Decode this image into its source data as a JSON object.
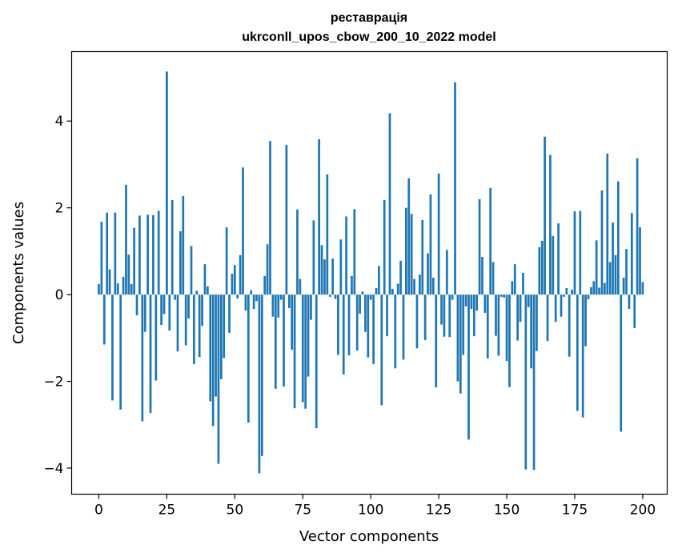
{
  "chart_data": {
    "type": "bar",
    "title": "реставрація",
    "subtitle": "ukrconll_upos_cbow_200_10_2022 model",
    "xlabel": "Vector components",
    "ylabel": "Components values",
    "xlim": [
      -10,
      209
    ],
    "ylim": [
      -4.6,
      5.6
    ],
    "xticks": [
      0,
      25,
      50,
      75,
      100,
      125,
      150,
      175,
      200
    ],
    "yticks": [
      -4,
      -2,
      0,
      2,
      4
    ],
    "ytick_labels": [
      "−4",
      "−2",
      "0",
      "2",
      "4"
    ],
    "bar_color": "#1f77b4",
    "grid": false,
    "values": [
      0.24,
      1.68,
      -1.15,
      1.89,
      0.58,
      -2.44,
      1.89,
      0.26,
      -2.65,
      0.41,
      2.53,
      0.92,
      0.24,
      1.54,
      -0.48,
      1.82,
      -2.92,
      -0.86,
      1.84,
      -2.73,
      1.83,
      -1.98,
      1.93,
      -0.7,
      -0.45,
      5.14,
      -0.83,
      2.18,
      -0.12,
      -1.31,
      1.46,
      2.27,
      -1.17,
      -0.55,
      1.12,
      -1.6,
      0.09,
      -1.44,
      -0.72,
      0.7,
      0.19,
      -2.46,
      -3.03,
      -2.35,
      -3.9,
      -1.95,
      -1.46,
      1.55,
      -0.88,
      0.48,
      0.68,
      -0.09,
      0.91,
      2.93,
      -0.37,
      -2.95,
      0.1,
      -0.33,
      -0.15,
      -4.12,
      -3.72,
      0.43,
      1.16,
      3.54,
      -0.51,
      -2.17,
      -0.53,
      -0.12,
      -2.12,
      3.45,
      -0.31,
      -1.27,
      -2.62,
      1.96,
      0.36,
      -2.48,
      -2.63,
      -1.89,
      -0.58,
      1.71,
      -3.08,
      3.58,
      1.14,
      0.81,
      2.77,
      -0.05,
      0.83,
      -0.1,
      -1.39,
      1.27,
      -1.84,
      1.8,
      -1.4,
      0.43,
      1.97,
      -1.29,
      -0.44,
      0.07,
      -0.86,
      -1.45,
      -0.12,
      -1.6,
      0.15,
      0.66,
      -2.55,
      2.18,
      -0.96,
      4.18,
      0.13,
      -1.7,
      0.25,
      0.78,
      -1.5,
      2.0,
      2.68,
      1.86,
      0.36,
      -1.24,
      0.46,
      1.72,
      -1.05,
      0.95,
      2.31,
      0.39,
      -2.14,
      2.79,
      -0.69,
      -0.97,
      1.03,
      -0.98,
      -0.12,
      4.89,
      -2.0,
      -2.28,
      -1.39,
      -0.27,
      -3.34,
      -0.33,
      -0.96,
      -0.37,
      2.2,
      0.87,
      -0.42,
      -1.47,
      2.46,
      0.75,
      -0.95,
      -1.41,
      -0.05,
      -0.07,
      -1.53,
      -2.13,
      0.31,
      0.7,
      -1.06,
      -0.63,
      0.5,
      -4.03,
      -0.29,
      -1.7,
      -4.04,
      -1.3,
      1.09,
      1.24,
      3.64,
      -1.07,
      3.22,
      1.35,
      -0.63,
      1.64,
      -0.51,
      -0.05,
      0.15,
      -1.43,
      0.11,
      1.92,
      -2.68,
      1.93,
      -2.83,
      -1.19,
      -0.11,
      0.17,
      0.31,
      1.25,
      0.16,
      2.4,
      0.27,
      3.25,
      0.75,
      1.66,
      0.91,
      2.61,
      -3.16,
      0.39,
      1.05,
      -0.33,
      1.88,
      -0.77,
      3.14,
      1.55,
      0.29
    ]
  }
}
